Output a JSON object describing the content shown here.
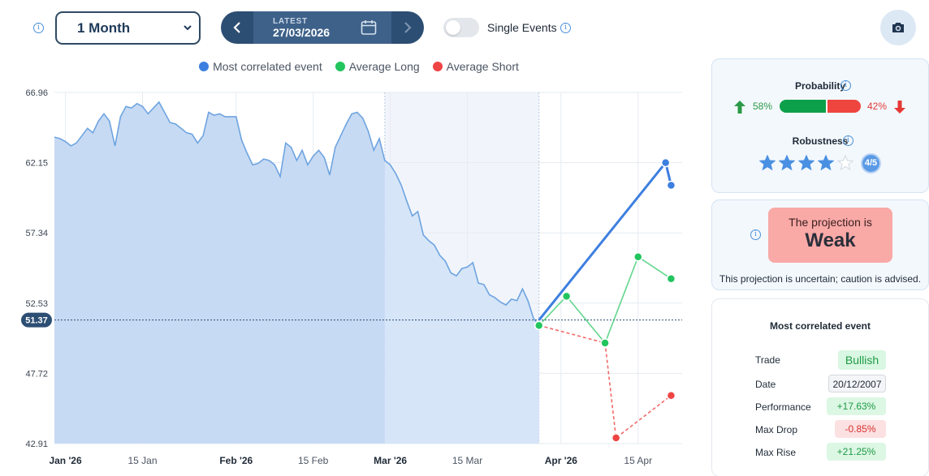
{
  "controls": {
    "period_value": "1 Month",
    "date_caption": "LATEST",
    "date_value": "27/03/2026",
    "single_events_label": "Single Events",
    "single_events_on": false
  },
  "legend": [
    {
      "label": "Most correlated event",
      "color": "#3d7fe0"
    },
    {
      "label": "Average Long",
      "color": "#22c55e"
    },
    {
      "label": "Average Short",
      "color": "#ef4444"
    }
  ],
  "chart_data": {
    "type": "line",
    "y_ticks": [
      "66.96",
      "62.15",
      "57.34",
      "52.53",
      "47.72",
      "42.91"
    ],
    "ylim": [
      42.91,
      66.96
    ],
    "x_ticks": [
      {
        "label": "Jan '26",
        "date": "2026-01-01",
        "bold": true
      },
      {
        "label": "15 Jan",
        "date": "2026-01-15",
        "bold": false
      },
      {
        "label": "Feb '26",
        "date": "2026-02-01",
        "bold": true
      },
      {
        "label": "15 Feb",
        "date": "2026-02-15",
        "bold": false
      },
      {
        "label": "Mar '26",
        "date": "2026-03-01",
        "bold": true
      },
      {
        "label": "15 Mar",
        "date": "2026-03-15",
        "bold": false
      },
      {
        "label": "Apr '26",
        "date": "2026-04-01",
        "bold": true
      },
      {
        "label": "15 Apr",
        "date": "2026-04-15",
        "bold": false
      }
    ],
    "xlim": [
      "2025-12-30",
      "2026-04-23"
    ],
    "current_value_label": "51.37",
    "current_value": 51.37,
    "highlight_start": "2026-02-28",
    "history": {
      "name": "Price",
      "points": [
        [
          "2025-12-30",
          63.9
        ],
        [
          "2025-12-31",
          63.8
        ],
        [
          "2026-01-01",
          63.6
        ],
        [
          "2026-01-02",
          63.3
        ],
        [
          "2026-01-03",
          63.5
        ],
        [
          "2026-01-04",
          64.0
        ],
        [
          "2026-01-05",
          64.5
        ],
        [
          "2026-01-06",
          64.2
        ],
        [
          "2026-01-07",
          65.0
        ],
        [
          "2026-01-08",
          65.5
        ],
        [
          "2026-01-09",
          65.0
        ],
        [
          "2026-01-10",
          63.3
        ],
        [
          "2026-01-11",
          65.3
        ],
        [
          "2026-01-12",
          66.0
        ],
        [
          "2026-01-13",
          65.9
        ],
        [
          "2026-01-14",
          66.2
        ],
        [
          "2026-01-15",
          66.0
        ],
        [
          "2026-01-16",
          65.5
        ],
        [
          "2026-01-17",
          65.9
        ],
        [
          "2026-01-18",
          66.3
        ],
        [
          "2026-01-19",
          65.6
        ],
        [
          "2026-01-20",
          64.9
        ],
        [
          "2026-01-21",
          64.8
        ],
        [
          "2026-01-22",
          64.5
        ],
        [
          "2026-01-23",
          64.2
        ],
        [
          "2026-01-24",
          64.1
        ],
        [
          "2026-01-25",
          63.5
        ],
        [
          "2026-01-26",
          64.0
        ],
        [
          "2026-01-27",
          65.6
        ],
        [
          "2026-01-28",
          65.4
        ],
        [
          "2026-01-29",
          65.5
        ],
        [
          "2026-01-30",
          65.3
        ],
        [
          "2026-01-31",
          65.3
        ],
        [
          "2026-02-01",
          65.3
        ],
        [
          "2026-02-02",
          63.7
        ],
        [
          "2026-02-03",
          62.8
        ],
        [
          "2026-02-04",
          62.0
        ],
        [
          "2026-02-05",
          62.1
        ],
        [
          "2026-02-06",
          62.4
        ],
        [
          "2026-02-07",
          62.3
        ],
        [
          "2026-02-08",
          62.0
        ],
        [
          "2026-02-09",
          61.2
        ],
        [
          "2026-02-10",
          63.5
        ],
        [
          "2026-02-11",
          63.2
        ],
        [
          "2026-02-12",
          62.3
        ],
        [
          "2026-02-13",
          63.0
        ],
        [
          "2026-02-14",
          62.0
        ],
        [
          "2026-02-15",
          62.6
        ],
        [
          "2026-02-16",
          63.0
        ],
        [
          "2026-02-17",
          62.5
        ],
        [
          "2026-02-18",
          61.3
        ],
        [
          "2026-02-19",
          63.2
        ],
        [
          "2026-02-20",
          64.0
        ],
        [
          "2026-02-21",
          64.8
        ],
        [
          "2026-02-22",
          65.5
        ],
        [
          "2026-02-23",
          65.6
        ],
        [
          "2026-02-24",
          65.2
        ],
        [
          "2026-02-25",
          64.3
        ],
        [
          "2026-02-26",
          63.0
        ],
        [
          "2026-02-27",
          63.8
        ],
        [
          "2026-02-28",
          62.3
        ],
        [
          "2026-03-01",
          62.0
        ],
        [
          "2026-03-02",
          61.4
        ],
        [
          "2026-03-03",
          60.6
        ],
        [
          "2026-03-04",
          59.5
        ],
        [
          "2026-03-05",
          58.5
        ],
        [
          "2026-03-06",
          58.8
        ],
        [
          "2026-03-07",
          57.2
        ],
        [
          "2026-03-08",
          56.8
        ],
        [
          "2026-03-09",
          56.5
        ],
        [
          "2026-03-10",
          55.8
        ],
        [
          "2026-03-11",
          55.4
        ],
        [
          "2026-03-12",
          54.6
        ],
        [
          "2026-03-13",
          54.4
        ],
        [
          "2026-03-14",
          54.9
        ],
        [
          "2026-03-15",
          55.0
        ],
        [
          "2026-03-16",
          55.3
        ],
        [
          "2026-03-17",
          53.9
        ],
        [
          "2026-03-18",
          53.8
        ],
        [
          "2026-03-19",
          53.1
        ],
        [
          "2026-03-20",
          52.9
        ],
        [
          "2026-03-21",
          52.6
        ],
        [
          "2026-03-22",
          52.4
        ],
        [
          "2026-03-23",
          52.8
        ],
        [
          "2026-03-24",
          52.7
        ],
        [
          "2026-03-25",
          53.5
        ],
        [
          "2026-03-26",
          52.7
        ],
        [
          "2026-03-27",
          51.5
        ],
        [
          "2026-03-28",
          51.0
        ]
      ]
    },
    "series": [
      {
        "name": "Most correlated event",
        "color": "#3d7fe0",
        "dashed": false,
        "points": [
          [
            "2026-03-28",
            51.37
          ],
          [
            "2026-04-20",
            62.15
          ],
          [
            "2026-04-21",
            60.6
          ]
        ]
      },
      {
        "name": "Average Long",
        "color": "#22c55e",
        "dashed": false,
        "points": [
          [
            "2026-03-28",
            51.0
          ],
          [
            "2026-04-02",
            53.0
          ],
          [
            "2026-04-09",
            49.8
          ],
          [
            "2026-04-15",
            55.7
          ],
          [
            "2026-04-21",
            54.2
          ]
        ]
      },
      {
        "name": "Average Short",
        "color": "#ef4444",
        "dashed": true,
        "points": [
          [
            "2026-03-28",
            51.0
          ],
          [
            "2026-04-09",
            49.8
          ],
          [
            "2026-04-11",
            43.3
          ],
          [
            "2026-04-21",
            46.2
          ]
        ]
      }
    ]
  },
  "probability": {
    "title": "Probability",
    "up_pct": "58%",
    "down_pct": "42%",
    "up_fraction": 0.58
  },
  "robustness": {
    "title": "Robustness",
    "stars_filled": 4,
    "stars_total": 5,
    "badge": "4/5"
  },
  "projection": {
    "caption": "The projection is",
    "strength": "Weak",
    "note": "This projection is uncertain; caution is advised."
  },
  "event": {
    "title": "Most correlated event",
    "rows": [
      {
        "label": "Trade",
        "value": "Bullish",
        "style": "green-big"
      },
      {
        "label": "Date",
        "value": "20/12/2007",
        "style": "gray"
      },
      {
        "label": "Performance",
        "value": "+17.63%",
        "style": "green"
      },
      {
        "label": "Max Drop",
        "value": "-0.85%",
        "style": "red"
      },
      {
        "label": "Max Rise",
        "value": "+21.25%",
        "style": "green"
      }
    ]
  },
  "colors": {
    "accent": "#2d4e73",
    "up": "#22a04b",
    "down": "#e53935",
    "area": "#c6d9f1"
  }
}
